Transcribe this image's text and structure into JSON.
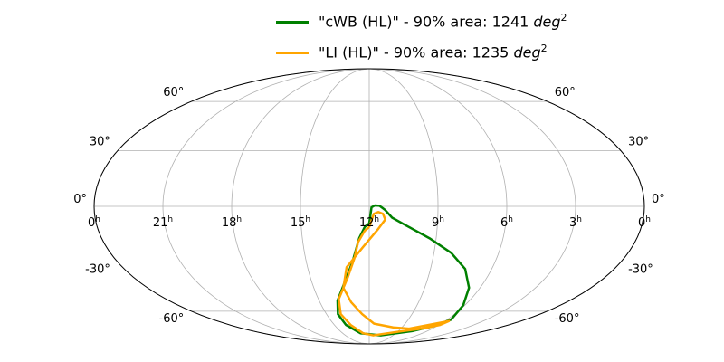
{
  "chart_data": {
    "type": "line",
    "projection": "mollweide",
    "grid": true,
    "legend_position": "top-center",
    "ra_tick_labels": [
      {
        "hours": 24,
        "label": "0",
        "sup": "h"
      },
      {
        "hours": 21,
        "label": "21",
        "sup": "h"
      },
      {
        "hours": 18,
        "label": "18",
        "sup": "h"
      },
      {
        "hours": 15,
        "label": "15",
        "sup": "h"
      },
      {
        "hours": 12,
        "label": "12",
        "sup": "h"
      },
      {
        "hours": 9,
        "label": "9",
        "sup": "h"
      },
      {
        "hours": 6,
        "label": "6",
        "sup": "h"
      },
      {
        "hours": 3,
        "label": "3",
        "sup": "h"
      },
      {
        "hours": 0,
        "label": "0",
        "sup": "h"
      }
    ],
    "dec_tick_labels": [
      {
        "dec": 60,
        "label": "60°"
      },
      {
        "dec": 30,
        "label": "30°"
      },
      {
        "dec": 0,
        "label": "0°"
      },
      {
        "dec": -30,
        "label": "-30°"
      },
      {
        "dec": -60,
        "label": "-60°"
      }
    ],
    "series": [
      {
        "name": "\"cWB (HL)\" - 90% area: 1241",
        "unit": "deg",
        "unit_exp": "2",
        "color": "#008000",
        "x_unit": "hours",
        "y_unit": "degrees",
        "points": [
          [
            12.0,
            -9
          ],
          [
            11.9,
            -0.5
          ],
          [
            11.75,
            0.5
          ],
          [
            11.55,
            0.3
          ],
          [
            11.3,
            -2
          ],
          [
            11.0,
            -6
          ],
          [
            10.4,
            -10
          ],
          [
            9.3,
            -17
          ],
          [
            8.2,
            -25
          ],
          [
            7.3,
            -34
          ],
          [
            6.6,
            -45
          ],
          [
            6.1,
            -56
          ],
          [
            5.7,
            -66
          ],
          [
            6.3,
            -71
          ],
          [
            7.5,
            -75
          ],
          [
            10.5,
            -79
          ],
          [
            13.0,
            -77
          ],
          [
            14.0,
            -70
          ],
          [
            14.2,
            -62
          ],
          [
            13.9,
            -53
          ],
          [
            13.3,
            -42
          ],
          [
            12.8,
            -30
          ],
          [
            12.45,
            -17
          ],
          [
            12.2,
            -11
          ],
          [
            12.0,
            -9
          ]
        ]
      },
      {
        "name": "\"LI (HL)\" - 90% area: 1235",
        "unit": "deg",
        "unit_exp": "2",
        "color": "#FFA500",
        "x_unit": "hours",
        "y_unit": "degrees",
        "points": [
          [
            12.0,
            -11
          ],
          [
            11.8,
            -4
          ],
          [
            11.6,
            -3
          ],
          [
            11.4,
            -4
          ],
          [
            11.3,
            -7
          ],
          [
            11.6,
            -12
          ],
          [
            12.3,
            -22
          ],
          [
            13.1,
            -33
          ],
          [
            13.4,
            -45
          ],
          [
            13.1,
            -54
          ],
          [
            12.5,
            -62
          ],
          [
            11.6,
            -69
          ],
          [
            9.8,
            -72
          ],
          [
            8.2,
            -73
          ],
          [
            5.7,
            -67
          ],
          [
            5.9,
            -70
          ],
          [
            7.0,
            -73
          ],
          [
            8.5,
            -75
          ],
          [
            11.5,
            -79
          ],
          [
            12.7,
            -77
          ],
          [
            13.6,
            -70
          ],
          [
            14.0,
            -62
          ],
          [
            13.8,
            -52
          ],
          [
            13.1,
            -39
          ],
          [
            12.7,
            -28
          ],
          [
            12.5,
            -19
          ],
          [
            12.2,
            -13
          ],
          [
            12.0,
            -11
          ]
        ]
      }
    ]
  }
}
